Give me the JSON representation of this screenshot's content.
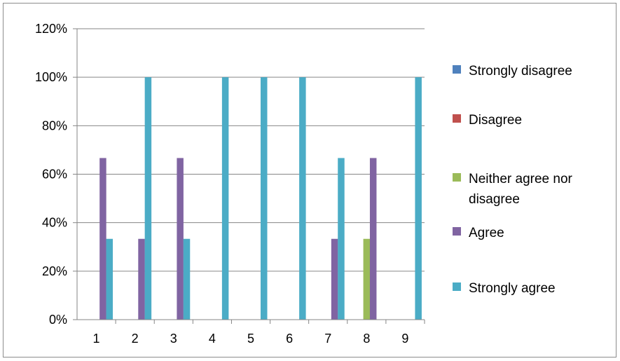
{
  "chart_data": {
    "type": "bar",
    "title": "",
    "xlabel": "",
    "ylabel": "",
    "categories": [
      "1",
      "2",
      "3",
      "4",
      "5",
      "6",
      "7",
      "8",
      "9"
    ],
    "ylim": [
      0,
      1.2
    ],
    "yticks": [
      "0%",
      "20%",
      "40%",
      "60%",
      "80%",
      "100%",
      "120%"
    ],
    "grid": true,
    "legend_position": "right",
    "series": [
      {
        "name": "Strongly disagree",
        "color": "#4f81bd",
        "values": [
          0,
          0,
          0,
          0,
          0,
          0,
          0,
          0,
          0
        ]
      },
      {
        "name": "Disagree",
        "color": "#c0504d",
        "values": [
          0,
          0,
          0,
          0,
          0,
          0,
          0,
          0,
          0
        ]
      },
      {
        "name": "Neither agree nor disagree",
        "color": "#9bbb59",
        "values": [
          0,
          0,
          0,
          0,
          0,
          0,
          0,
          0.3333,
          0
        ]
      },
      {
        "name": "Agree",
        "color": "#8064a2",
        "values": [
          0.6667,
          0.3333,
          0.6667,
          0,
          0,
          0,
          0.3333,
          0.6667,
          0
        ]
      },
      {
        "name": "Strongly agree",
        "color": "#4bacc6",
        "values": [
          0.3333,
          1,
          0.3333,
          1,
          1,
          1,
          0.6667,
          0,
          1
        ]
      }
    ],
    "legend_lines": [
      [
        "Strongly disagree"
      ],
      [
        "Disagree"
      ],
      [
        "Neither agree nor",
        "disagree"
      ],
      [
        "Agree"
      ],
      [
        "Strongly agree"
      ]
    ]
  }
}
